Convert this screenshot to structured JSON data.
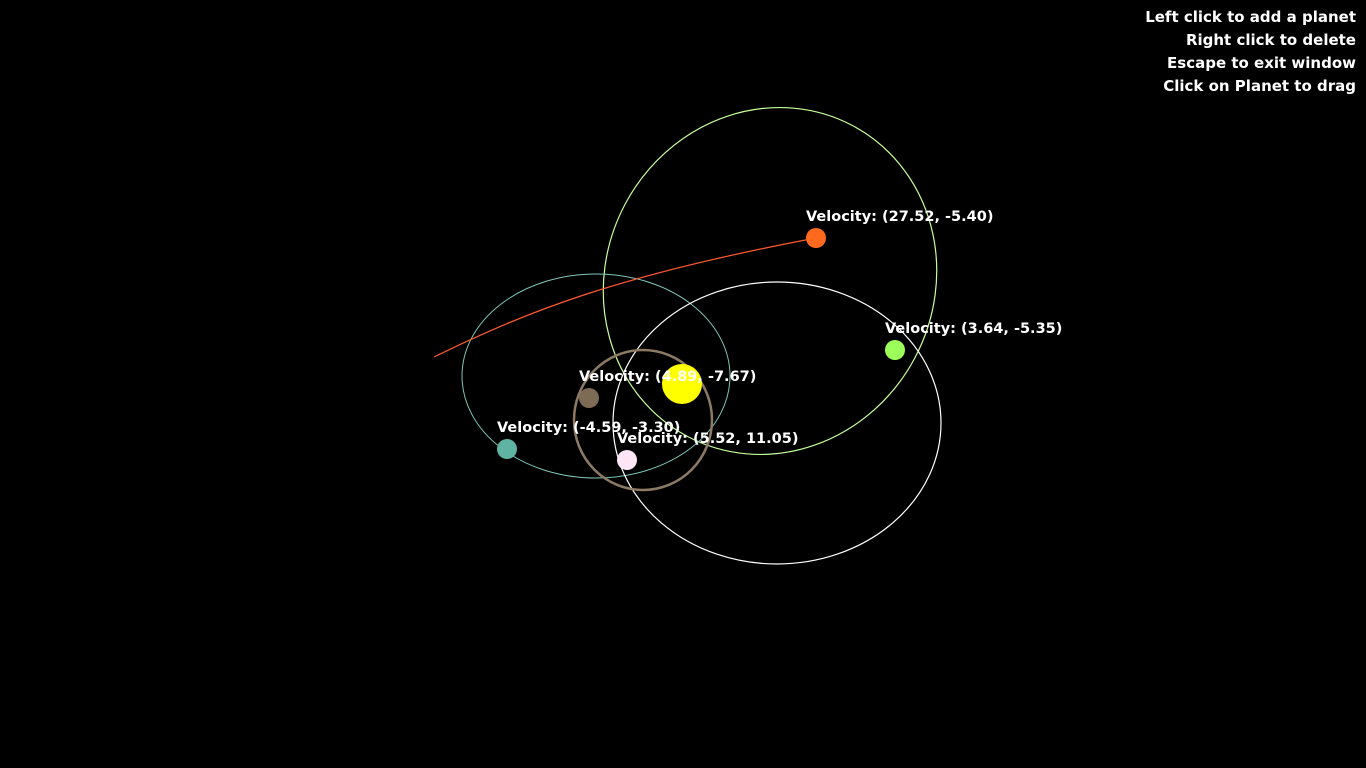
{
  "instructions": {
    "add": "Left click to add a planet",
    "delete": "Right click to delete",
    "exit": "Escape to exit window",
    "drag": "Click on Planet to drag"
  },
  "sun": {
    "color": "#ffff00"
  },
  "planets": [
    {
      "id": "orange",
      "color": "#ff6a1f",
      "velocity_label": "Velocity: (27.52, -5.40)"
    },
    {
      "id": "green",
      "color": "#9cff5a",
      "velocity_label": "Velocity: (3.64, -5.35)"
    },
    {
      "id": "brown",
      "color": "#7d6b55",
      "velocity_label": "Velocity: (4.89, -7.67)"
    },
    {
      "id": "teal",
      "color": "#5fb3a3",
      "velocity_label": "Velocity: (-4.59, -3.30)"
    },
    {
      "id": "pink",
      "color": "#ffe6f7",
      "velocity_label": "Velocity: (5.52, 11.05)"
    }
  ],
  "orbits": [
    {
      "planet": "green",
      "color": "#c6ff9a"
    },
    {
      "planet": "teal",
      "color": "#7fc7b8"
    },
    {
      "planet": "pink",
      "color": "#ffffff"
    },
    {
      "planet": "brown",
      "color": "#8d7a64"
    },
    {
      "planet": "orange",
      "color": "#ff5a30"
    }
  ]
}
